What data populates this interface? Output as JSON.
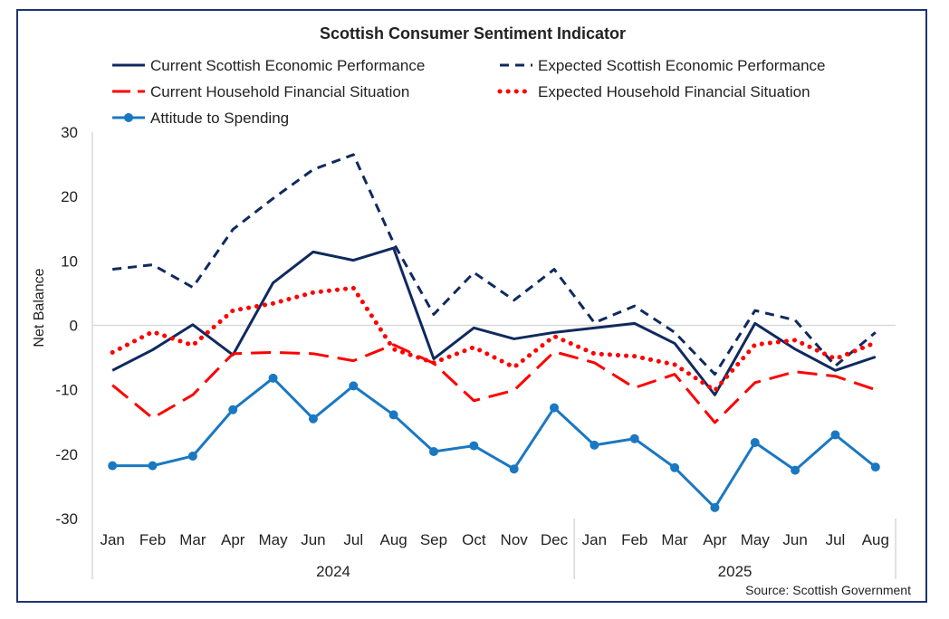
{
  "chart_data": {
    "type": "line",
    "title": "Scottish Consumer Sentiment Indicator",
    "ylabel": "Net Balance",
    "ylim": [
      -30,
      30
    ],
    "yticks": [
      30,
      20,
      10,
      0,
      -10,
      -20,
      -30
    ],
    "grid": false,
    "legend": "top",
    "source": "Source: Scottish Government",
    "categories": [
      "Jan",
      "Feb",
      "Mar",
      "Apr",
      "May",
      "Jun",
      "Jul",
      "Aug",
      "Sep",
      "Oct",
      "Nov",
      "Dec",
      "Jan",
      "Feb",
      "Mar",
      "Apr",
      "May",
      "Jun",
      "Jul",
      "Aug"
    ],
    "year_groups": [
      {
        "label": "2024",
        "count": 12
      },
      {
        "label": "2025",
        "count": 8
      }
    ],
    "series": [
      {
        "name": "Current Scottish Economic Performance",
        "color": "#0f2a5e",
        "style": "solid",
        "values": [
          -7.0,
          -3.8,
          0.1,
          -4.6,
          6.6,
          11.4,
          10.1,
          12.0,
          -5.2,
          -0.4,
          -2.1,
          -1.1,
          -0.4,
          0.3,
          -2.8,
          -10.8,
          0.3,
          -3.7,
          -7.0,
          -4.9
        ]
      },
      {
        "name": "Expected Scottish Economic Performance",
        "color": "#0f2a5e",
        "style": "dash",
        "values": [
          8.7,
          9.4,
          5.9,
          14.9,
          19.7,
          24.2,
          26.5,
          12.8,
          1.7,
          8.2,
          3.9,
          8.7,
          0.4,
          3.0,
          -1.1,
          -7.6,
          2.3,
          0.8,
          -6.3,
          -1.1
        ]
      },
      {
        "name": "Current Household Financial Situation",
        "color": "#ff0000",
        "style": "longdash",
        "values": [
          -9.3,
          -14.4,
          -10.8,
          -4.4,
          -4.2,
          -4.4,
          -5.5,
          -3.0,
          -5.9,
          -11.7,
          -10.1,
          -4.1,
          -5.8,
          -9.7,
          -7.6,
          -15.1,
          -8.9,
          -7.2,
          -7.9,
          -10.0
        ]
      },
      {
        "name": "Expected Household Financial Situation",
        "color": "#ff0000",
        "style": "dot",
        "values": [
          -4.2,
          -1.0,
          -3.1,
          2.3,
          3.4,
          5.1,
          5.8,
          -3.7,
          -5.8,
          -3.4,
          -6.5,
          -1.7,
          -4.4,
          -4.8,
          -6.1,
          -10.1,
          -3.0,
          -2.3,
          -5.2,
          -2.7
        ]
      },
      {
        "name": "Attitude to Spending",
        "color": "#1a78c2",
        "style": "marker",
        "values": [
          -21.8,
          -21.8,
          -20.3,
          -13.1,
          -8.2,
          -14.5,
          -9.4,
          -13.9,
          -19.6,
          -18.7,
          -22.3,
          -12.8,
          -18.6,
          -17.6,
          -22.1,
          -28.3,
          -18.2,
          -22.5,
          -17.0,
          -22.0
        ]
      }
    ]
  }
}
